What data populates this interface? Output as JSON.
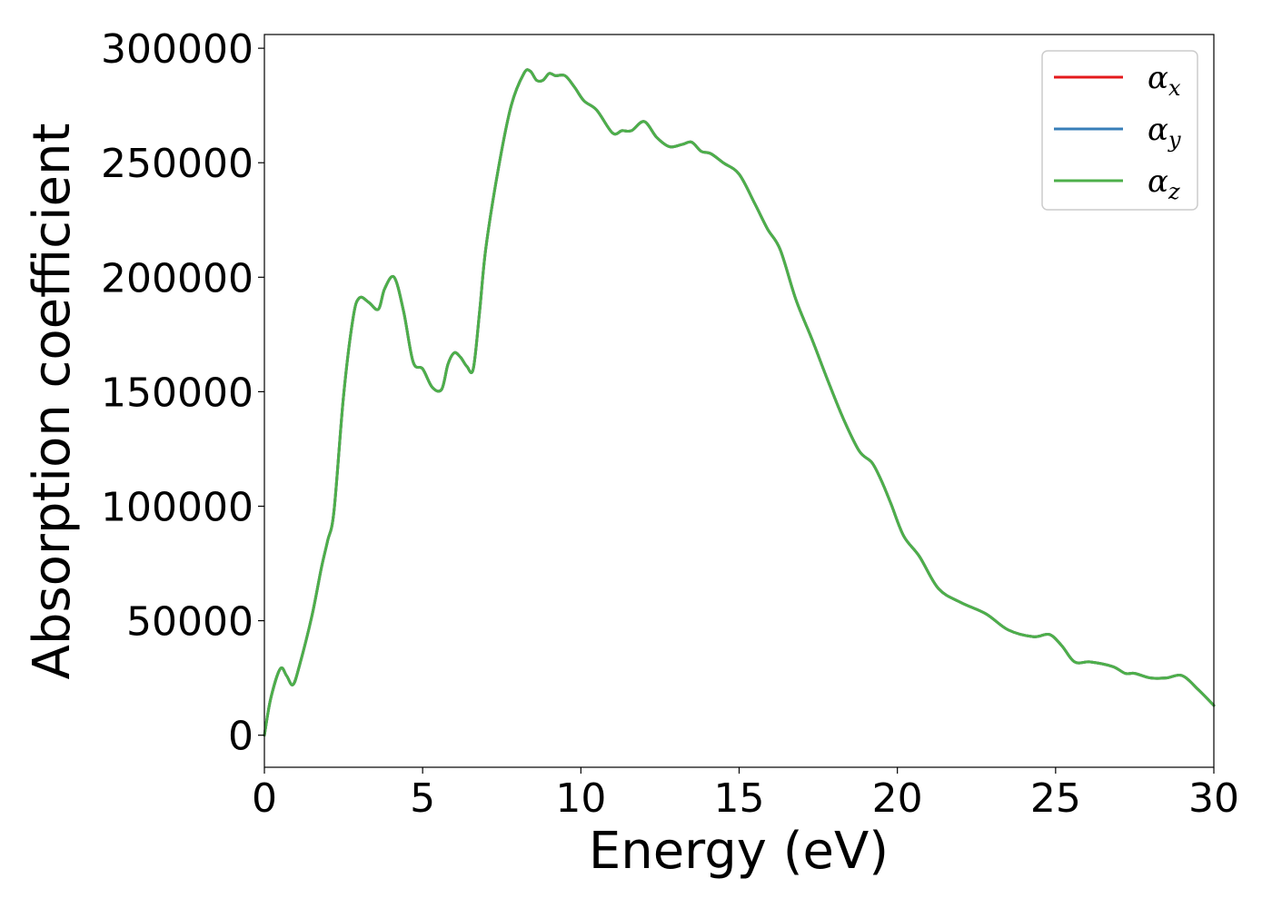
{
  "chart_data": {
    "type": "line",
    "title": "",
    "xlabel": "Energy (eV)",
    "ylabel": "Absorption coefficient",
    "xlim": [
      0,
      30
    ],
    "ylim": [
      -14000,
      306000
    ],
    "xticks": [
      0,
      5,
      10,
      15,
      20,
      25,
      30
    ],
    "xtick_labels": [
      "0",
      "5",
      "10",
      "15",
      "20",
      "25",
      "30"
    ],
    "yticks": [
      0,
      50000,
      100000,
      150000,
      200000,
      250000,
      300000
    ],
    "ytick_labels": [
      "0",
      "50000",
      "100000",
      "150000",
      "200000",
      "250000",
      "300000"
    ],
    "grid": false,
    "legend_position": "top-right",
    "x": [
      0,
      0.2,
      0.5,
      0.7,
      0.9,
      1.1,
      1.5,
      1.8,
      2.0,
      2.2,
      2.5,
      2.8,
      3.0,
      3.3,
      3.6,
      3.8,
      4.1,
      4.4,
      4.7,
      5.0,
      5.3,
      5.6,
      5.8,
      6.0,
      6.2,
      6.4,
      6.6,
      6.8,
      7.0,
      7.4,
      7.8,
      8.2,
      8.4,
      8.6,
      8.8,
      9.0,
      9.2,
      9.5,
      9.8,
      10.1,
      10.5,
      11.0,
      11.3,
      11.6,
      12.0,
      12.4,
      12.8,
      13.2,
      13.5,
      13.8,
      14.1,
      14.5,
      15.0,
      15.5,
      15.9,
      16.3,
      16.8,
      17.3,
      17.8,
      18.3,
      18.8,
      19.2,
      19.5,
      19.8,
      20.2,
      20.7,
      21.3,
      22.0,
      22.8,
      23.5,
      24.3,
      24.8,
      25.2,
      25.6,
      26.1,
      26.8,
      27.2,
      27.5,
      28.0,
      28.5,
      29.0,
      29.5,
      30.0
    ],
    "series": [
      {
        "name": "α_x",
        "label_base": "α",
        "label_sub": "x",
        "color": "#e41a1c",
        "values": [
          0,
          16000,
          29000,
          26000,
          22000,
          30000,
          52000,
          73000,
          85000,
          98000,
          148000,
          182000,
          191000,
          189000,
          186000,
          195000,
          200000,
          185000,
          163000,
          160000,
          152000,
          151000,
          162000,
          167000,
          165000,
          161000,
          160000,
          185000,
          213000,
          248000,
          275000,
          289000,
          290000,
          286000,
          286000,
          289000,
          288000,
          288000,
          283000,
          277000,
          273000,
          263000,
          264000,
          264000,
          268000,
          261000,
          257000,
          258000,
          259000,
          255000,
          254000,
          250000,
          245000,
          232000,
          221000,
          212000,
          190000,
          173000,
          155000,
          138000,
          124000,
          119000,
          111000,
          101000,
          87000,
          78000,
          64000,
          58000,
          53000,
          46000,
          43000,
          44000,
          39000,
          32000,
          32000,
          30000,
          27000,
          27000,
          25000,
          25000,
          26000,
          20000,
          13000
        ]
      },
      {
        "name": "α_y",
        "label_base": "α",
        "label_sub": "y",
        "color": "#377eb8",
        "values": [
          0,
          16000,
          29000,
          26000,
          22000,
          30000,
          52000,
          73000,
          85000,
          98000,
          148000,
          182000,
          191000,
          189000,
          186000,
          195000,
          200000,
          185000,
          163000,
          160000,
          152000,
          151000,
          162000,
          167000,
          165000,
          161000,
          160000,
          185000,
          213000,
          248000,
          275000,
          289000,
          290000,
          286000,
          286000,
          289000,
          288000,
          288000,
          283000,
          277000,
          273000,
          263000,
          264000,
          264000,
          268000,
          261000,
          257000,
          258000,
          259000,
          255000,
          254000,
          250000,
          245000,
          232000,
          221000,
          212000,
          190000,
          173000,
          155000,
          138000,
          124000,
          119000,
          111000,
          101000,
          87000,
          78000,
          64000,
          58000,
          53000,
          46000,
          43000,
          44000,
          39000,
          32000,
          32000,
          30000,
          27000,
          27000,
          25000,
          25000,
          26000,
          20000,
          13000
        ]
      },
      {
        "name": "α_z",
        "label_base": "α",
        "label_sub": "z",
        "color": "#4daf4a",
        "values": [
          0,
          16000,
          29000,
          26000,
          22000,
          30000,
          52000,
          73000,
          85000,
          98000,
          148000,
          182000,
          191000,
          189000,
          186000,
          195000,
          200000,
          185000,
          163000,
          160000,
          152000,
          151000,
          162000,
          167000,
          165000,
          161000,
          160000,
          185000,
          213000,
          248000,
          275000,
          289000,
          290000,
          286000,
          286000,
          289000,
          288000,
          288000,
          283000,
          277000,
          273000,
          263000,
          264000,
          264000,
          268000,
          261000,
          257000,
          258000,
          259000,
          255000,
          254000,
          250000,
          245000,
          232000,
          221000,
          212000,
          190000,
          173000,
          155000,
          138000,
          124000,
          119000,
          111000,
          101000,
          87000,
          78000,
          64000,
          58000,
          53000,
          46000,
          43000,
          44000,
          39000,
          32000,
          32000,
          30000,
          27000,
          27000,
          25000,
          25000,
          26000,
          20000,
          13000
        ]
      }
    ]
  }
}
